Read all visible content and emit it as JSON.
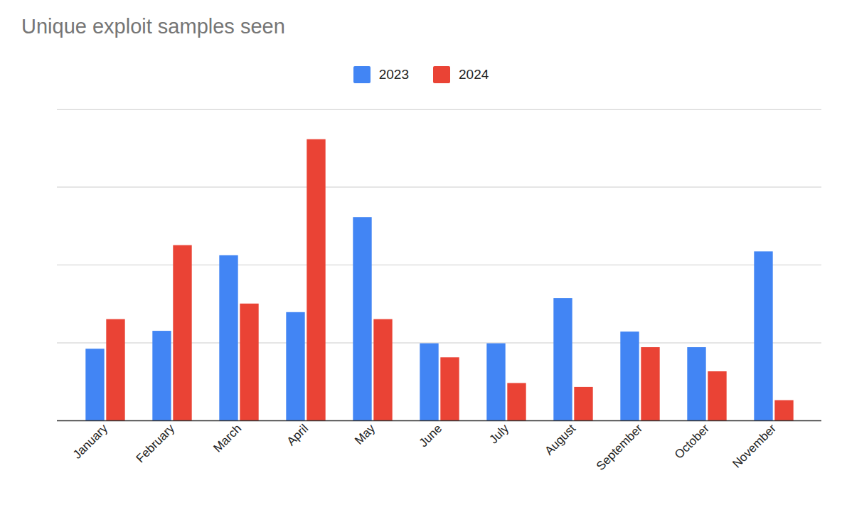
{
  "chart_data": {
    "type": "bar",
    "title": "Unique exploit samples seen",
    "categories": [
      "January",
      "February",
      "March",
      "April",
      "May",
      "June",
      "July",
      "August",
      "September",
      "October",
      "November"
    ],
    "series": [
      {
        "name": "2023",
        "color": "#4285f4",
        "values": [
          9.2,
          11.5,
          21.2,
          13.9,
          26.1,
          9.9,
          9.9,
          15.7,
          11.4,
          9.4,
          21.7
        ]
      },
      {
        "name": "2024",
        "color": "#ea4335",
        "values": [
          13.0,
          22.5,
          15.0,
          36.1,
          13.0,
          8.1,
          4.8,
          4.3,
          9.4,
          6.3,
          2.6
        ]
      }
    ],
    "ylim": [
      0,
      40
    ],
    "yticks": [
      0,
      10,
      20,
      30,
      40
    ],
    "grid": true,
    "legend": "top",
    "tick_labels": "x"
  }
}
